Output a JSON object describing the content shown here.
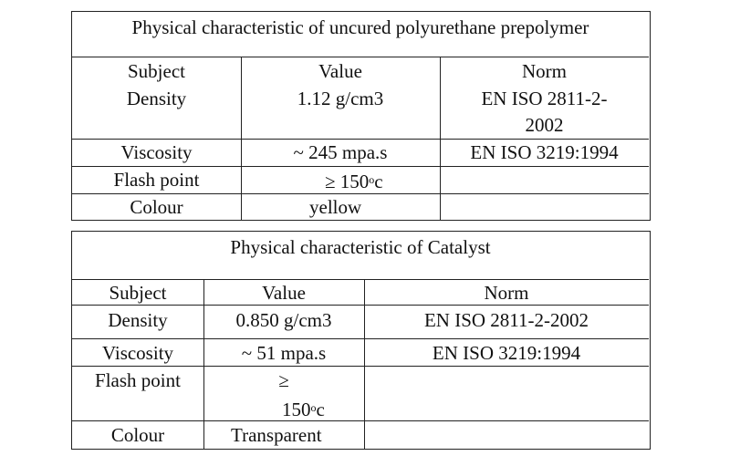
{
  "table1": {
    "title": "Physical characteristic of uncured polyurethane prepolymer",
    "headers": {
      "subject": "Subject",
      "value": "Value",
      "norm": "Norm"
    },
    "rows": [
      {
        "subject": "Density",
        "value": "1.12 g/cm3",
        "norm_line1": "EN ISO 2811-2-",
        "norm_line2": "2002"
      },
      {
        "subject": "Viscosity",
        "value": "~ 245 mpa.s",
        "norm": "EN ISO 3219:1994"
      },
      {
        "subject": "Flash point",
        "value_prefix": "≥ 150",
        "value_sup": "o",
        "value_suffix": "c",
        "norm": ""
      },
      {
        "subject": "Colour",
        "value": "yellow",
        "norm": ""
      }
    ]
  },
  "table2": {
    "title": "Physical characteristic of Catalyst",
    "headers": {
      "subject": "Subject",
      "value": "Value",
      "norm": "Norm"
    },
    "rows": [
      {
        "subject": "Density",
        "value": "0.850 g/cm3",
        "norm": "EN ISO 2811-2-2002"
      },
      {
        "subject": "Viscosity",
        "value": "~ 51 mpa.s",
        "norm": "EN ISO 3219:1994"
      },
      {
        "subject": "Flash point",
        "value_line1": "≥",
        "value_line2_prefix": "150",
        "value_sup": "o",
        "value_suffix": "c",
        "norm": ""
      },
      {
        "subject": "Colour",
        "value": "Transparent",
        "norm": ""
      }
    ]
  }
}
